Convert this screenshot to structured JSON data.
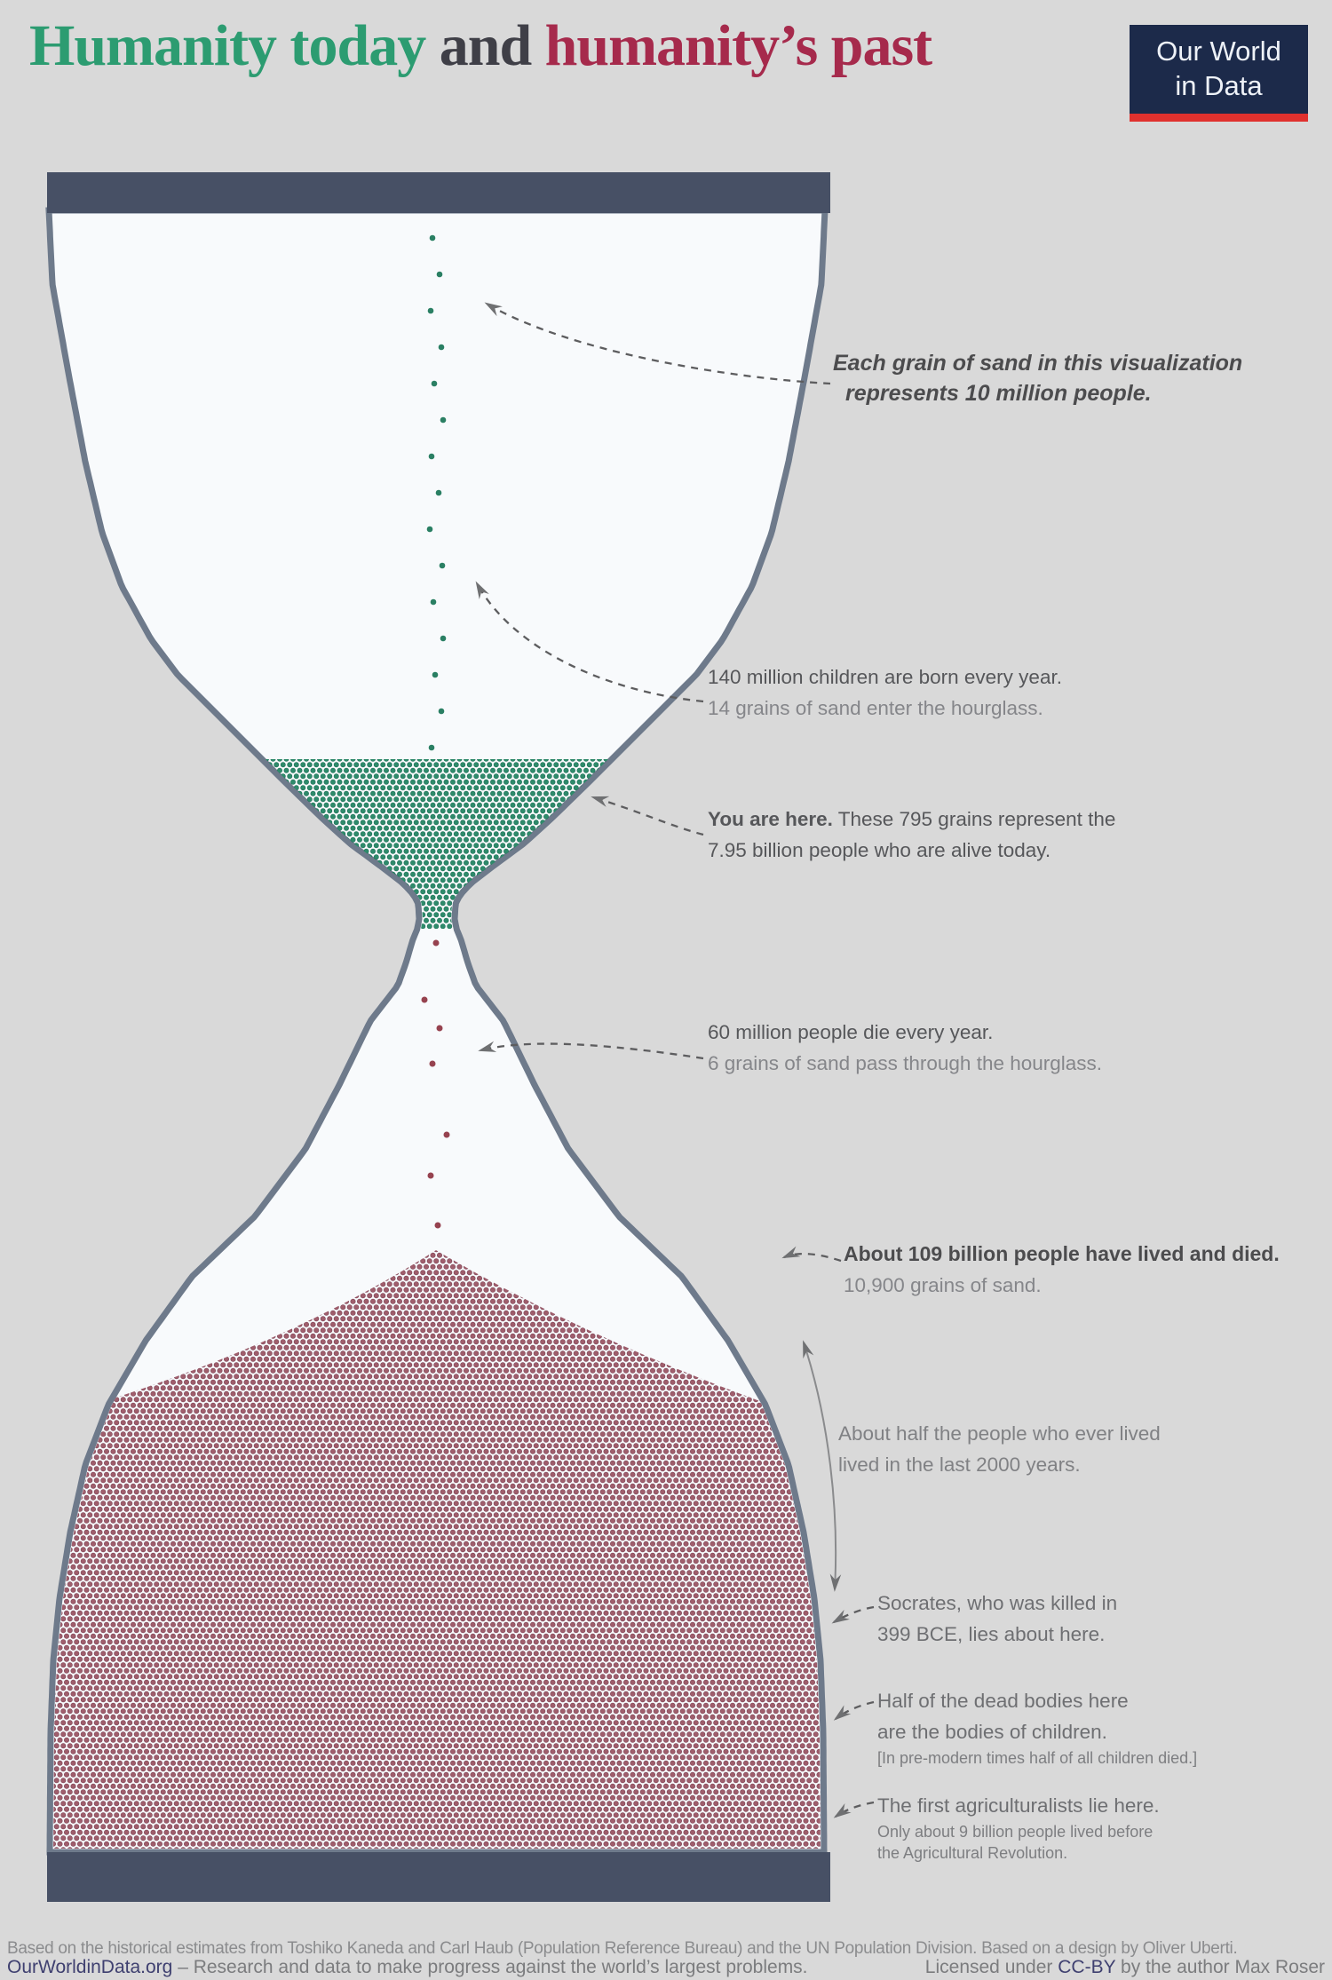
{
  "header": {
    "title": {
      "part1": "Humanity today",
      "part2": " and ",
      "part3": "humanity’s past",
      "color1": "#2c9c71",
      "color2": "#3f3f47",
      "color3": "#a62a4c"
    },
    "logo": {
      "line1": "Our World",
      "line2": "in Data",
      "bg": "#1c2a4a",
      "accent": "#e0312e",
      "text_color": "#eef2f8"
    }
  },
  "hourglass": {
    "colors": {
      "cap": "#475065",
      "outline": "#6e7a8b",
      "interior": "#f8fafc",
      "sand_green": "#2e8b6b",
      "sand_green_edge": "#1f7258",
      "sand_red": "#9f5e6c",
      "sand_red_edge": "#7e4355",
      "falling_green": "#2a7f63",
      "falling_red": "#96424f"
    }
  },
  "annotations": {
    "grain": {
      "line1": "Each grain of sand in this visualization",
      "line2": "represents 10 million people."
    },
    "births": {
      "line1": "140 million children are born every year.",
      "line2": "14 grains of sand enter the hourglass."
    },
    "alive": {
      "bold": "You are here.",
      "rest": " These 795 grains represent the",
      "line2": "7.95 billion people who are alive today."
    },
    "deaths": {
      "line1": "60 million people die every year.",
      "line2": "6 grains of sand pass through the hourglass."
    },
    "dead": {
      "line1": "About 109 billion people have lived and died.",
      "line2": "10,900 grains of sand."
    },
    "half": {
      "line1": "About half the people who ever lived",
      "line2": "lived in the last 2000 years."
    },
    "socrates": {
      "line1": "Socrates, who was killed in",
      "line2": "399 BCE, lies about here."
    },
    "children": {
      "line1": "Half of the dead bodies here",
      "line2": "are the bodies of children.",
      "line3": "[In pre-modern times half of all children died.]"
    },
    "agriculture": {
      "line1": "The first agriculturalists lie here.",
      "line2": "Only about 9 billion people lived before",
      "line3": "the Agricultural Revolution."
    }
  },
  "footer": {
    "line1": "Based on the historical estimates from Toshiko Kaneda and Carl Haub (Population Reference Bureau) and the UN Population Division. Based on a design by Oliver Uberti.",
    "link1": "OurWorldinData.org",
    "line2_rest": " – Research and data to make progress against the world’s largest problems.",
    "license_pre": "Licensed under ",
    "license_link": "CC-BY",
    "license_post": " by the author Max Roser",
    "link_color": "#3f4070"
  },
  "chart_data": {
    "type": "pictograph",
    "title": "Humanity today and humanity’s past",
    "people_per_grain": 10000000,
    "series": [
      {
        "name": "People alive today (green sand, upper bulb)",
        "grains": 795,
        "people": 7950000000
      },
      {
        "name": "People who have lived and died (red sand, lower bulb)",
        "grains": 10900,
        "people": 109000000000
      },
      {
        "name": "Children born every year (grains entering)",
        "grains": 14,
        "people": 140000000
      },
      {
        "name": "People who die every year (grains passing through)",
        "grains": 6,
        "people": 60000000
      }
    ],
    "facts": [
      "About half the people who ever lived lived in the last 2000 years.",
      "Socrates, who was killed in 399 BCE, lies about here.",
      "Half of the dead bodies here are the bodies of children. In pre-modern times half of all children died.",
      "Only about 9 billion people lived before the Agricultural Revolution."
    ]
  }
}
